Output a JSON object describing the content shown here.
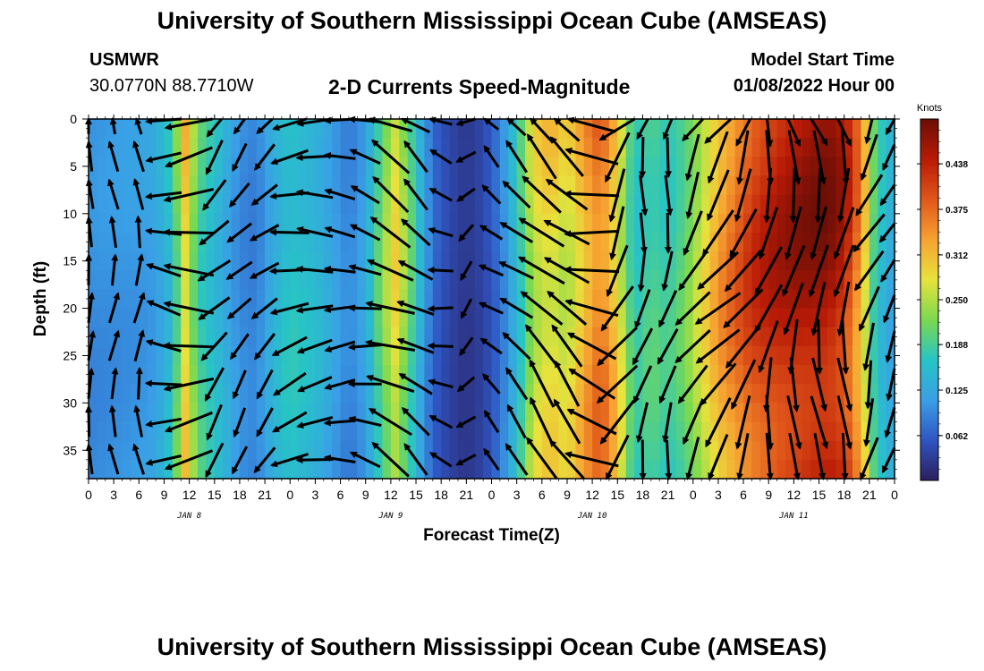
{
  "header": {
    "main_title": "University of Southern Mississippi Ocean Cube (AMSEAS)",
    "station": "USMWR",
    "coords": "30.0770N  88.7710W",
    "chart_title": "2-D Currents Speed-Magnitude",
    "model_start_label": "Model Start Time",
    "model_start_value": "01/08/2022 Hour 00"
  },
  "footer": {
    "title": "University of Southern Mississippi Ocean Cube (AMSEAS)"
  },
  "chart_data": {
    "type": "heatmap",
    "title": "2-D Currents Speed-Magnitude",
    "xlabel": "Forecast Time(Z)",
    "ylabel": "Depth (ft)",
    "x_ticks": [
      "0",
      "3",
      "6",
      "9",
      "12",
      "15",
      "18",
      "21",
      "0",
      "3",
      "6",
      "9",
      "12",
      "15",
      "18",
      "21",
      "0",
      "3",
      "6",
      "9",
      "12",
      "15",
      "18",
      "21",
      "0",
      "3",
      "6",
      "9",
      "12",
      "15",
      "18",
      "21",
      "0"
    ],
    "x_range_hours": [
      0,
      96
    ],
    "day_labels": [
      {
        "text": "JAN 8",
        "hour": 12
      },
      {
        "text": "JAN 9",
        "hour": 36
      },
      {
        "text": "JAN 10",
        "hour": 60
      },
      {
        "text": "JAN 11",
        "hour": 84
      }
    ],
    "y_ticks": [
      0,
      5,
      10,
      15,
      20,
      25,
      30,
      35
    ],
    "ylim": [
      0,
      38
    ],
    "y_inverted": true,
    "colorbar": {
      "unit": "Knots",
      "range": [
        0,
        0.5
      ],
      "labels": [
        "0.062",
        "0.125",
        "0.188",
        "0.250",
        "0.312",
        "0.375",
        "0.438"
      ],
      "colors": [
        "#2b1f5e",
        "#2f55c2",
        "#3a9fe6",
        "#27c4c6",
        "#7ad94f",
        "#e8e23c",
        "#f6a231",
        "#e0561a",
        "#b81a06",
        "#6a0e06"
      ]
    },
    "speed_profile_by_hour": [
      {
        "h": 0,
        "v": 0.1
      },
      {
        "h": 6,
        "v": 0.11
      },
      {
        "h": 8,
        "v": 0.12
      },
      {
        "h": 10,
        "v": 0.17
      },
      {
        "h": 11.5,
        "v": 0.3
      },
      {
        "h": 13,
        "v": 0.2
      },
      {
        "h": 14.5,
        "v": 0.17
      },
      {
        "h": 16,
        "v": 0.14
      },
      {
        "h": 18,
        "v": 0.1
      },
      {
        "h": 20,
        "v": 0.09
      },
      {
        "h": 22,
        "v": 0.14
      },
      {
        "h": 24,
        "v": 0.17
      },
      {
        "h": 27,
        "v": 0.15
      },
      {
        "h": 29,
        "v": 0.12
      },
      {
        "h": 31,
        "v": 0.09
      },
      {
        "h": 33,
        "v": 0.12
      },
      {
        "h": 35,
        "v": 0.22
      },
      {
        "h": 36.5,
        "v": 0.28
      },
      {
        "h": 38,
        "v": 0.22
      },
      {
        "h": 39.5,
        "v": 0.14
      },
      {
        "h": 41,
        "v": 0.07
      },
      {
        "h": 43,
        "v": 0.04
      },
      {
        "h": 45,
        "v": 0.025
      },
      {
        "h": 47,
        "v": 0.04
      },
      {
        "h": 49,
        "v": 0.08
      },
      {
        "h": 51,
        "v": 0.16
      },
      {
        "h": 53,
        "v": 0.27
      },
      {
        "h": 55,
        "v": 0.3
      },
      {
        "h": 57,
        "v": 0.27
      },
      {
        "h": 59,
        "v": 0.33
      },
      {
        "h": 61,
        "v": 0.38
      },
      {
        "h": 63,
        "v": 0.3
      },
      {
        "h": 65,
        "v": 0.17
      },
      {
        "h": 67,
        "v": 0.2
      },
      {
        "h": 69,
        "v": 0.18
      },
      {
        "h": 71,
        "v": 0.21
      },
      {
        "h": 73,
        "v": 0.27
      },
      {
        "h": 75,
        "v": 0.33
      },
      {
        "h": 77,
        "v": 0.37
      },
      {
        "h": 79,
        "v": 0.41
      },
      {
        "h": 82,
        "v": 0.44
      },
      {
        "h": 85,
        "v": 0.46
      },
      {
        "h": 88,
        "v": 0.47
      },
      {
        "h": 90,
        "v": 0.44
      },
      {
        "h": 92,
        "v": 0.34
      },
      {
        "h": 93.5,
        "v": 0.2
      },
      {
        "h": 95,
        "v": 0.14
      },
      {
        "h": 96,
        "v": 0.13
      }
    ],
    "arrow_direction_by_hour": [
      {
        "h": 0,
        "deg": 180
      },
      {
        "h": 6,
        "deg": 180
      },
      {
        "h": 8,
        "deg": 200
      },
      {
        "h": 9,
        "deg": 265
      },
      {
        "h": 12,
        "deg": 275
      },
      {
        "h": 14,
        "deg": 280
      },
      {
        "h": 15,
        "deg": 320
      },
      {
        "h": 18,
        "deg": 322
      },
      {
        "h": 21,
        "deg": 315
      },
      {
        "h": 23,
        "deg": 295
      },
      {
        "h": 25,
        "deg": 278
      },
      {
        "h": 29,
        "deg": 272
      },
      {
        "h": 32,
        "deg": 265
      },
      {
        "h": 34,
        "deg": 248
      },
      {
        "h": 37,
        "deg": 240
      },
      {
        "h": 40,
        "deg": 230
      },
      {
        "h": 42,
        "deg": 255
      },
      {
        "h": 44,
        "deg": 300
      },
      {
        "h": 46,
        "deg": 330
      },
      {
        "h": 48,
        "deg": 230
      },
      {
        "h": 52,
        "deg": 225
      },
      {
        "h": 56,
        "deg": 220
      },
      {
        "h": 58,
        "deg": 230
      },
      {
        "h": 60,
        "deg": 255
      },
      {
        "h": 62,
        "deg": 320
      },
      {
        "h": 64,
        "deg": 340
      },
      {
        "h": 66,
        "deg": 350
      },
      {
        "h": 68,
        "deg": 355
      },
      {
        "h": 72,
        "deg": 330
      },
      {
        "h": 76,
        "deg": 320
      },
      {
        "h": 80,
        "deg": 345
      },
      {
        "h": 84,
        "deg": 355
      },
      {
        "h": 88,
        "deg": 360
      },
      {
        "h": 91,
        "deg": 355
      },
      {
        "h": 94,
        "deg": 330
      },
      {
        "h": 96,
        "deg": 320
      }
    ]
  }
}
